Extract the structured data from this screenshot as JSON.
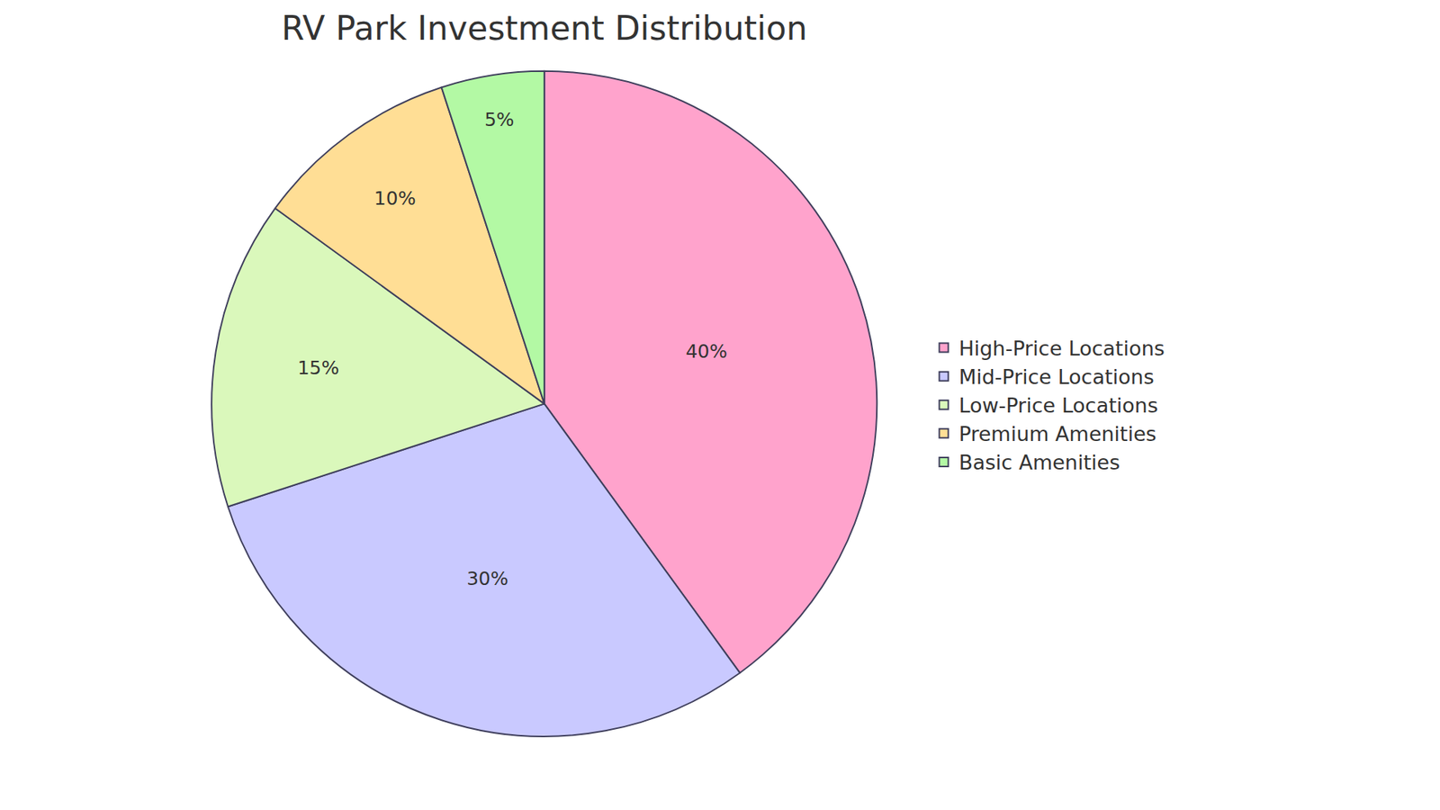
{
  "chart_data": {
    "type": "pie",
    "title": "RV Park Investment Distribution",
    "categories": [
      "High-Price Locations",
      "Mid-Price Locations",
      "Low-Price Locations",
      "Premium Amenities",
      "Basic Amenities"
    ],
    "values": [
      40,
      30,
      15,
      10,
      5
    ],
    "value_labels": [
      "40%",
      "30%",
      "15%",
      "10%",
      "5%"
    ],
    "colors": [
      "#FFA3CC",
      "#C9C9FF",
      "#DAF8BB",
      "#FFDE95",
      "#B3F9A4"
    ],
    "data_labels": true,
    "legend": "right"
  }
}
